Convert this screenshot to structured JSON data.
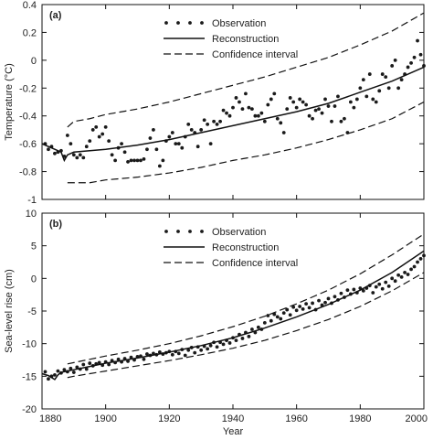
{
  "chart_data": [
    {
      "type": "line",
      "panel_label": "(a)",
      "ylabel": "Temperature (°C)",
      "xlabel": "",
      "xlim": [
        1880,
        2000
      ],
      "ylim": [
        -1,
        0.4
      ],
      "xticks": [
        1880,
        1900,
        1920,
        1940,
        1960,
        1980,
        2000
      ],
      "yticks": [
        -1,
        -0.8,
        -0.6,
        -0.4,
        -0.2,
        0,
        0.2,
        0.4
      ],
      "ytick_labels": [
        "-1",
        "-0.8",
        "-0.6",
        "-0.4",
        "-0.2",
        "0",
        "0.2",
        "0.4"
      ],
      "legend": {
        "position": "top-center",
        "entries": [
          {
            "label": "Observation",
            "style": "dots"
          },
          {
            "label": "Reconstruction",
            "style": "solid"
          },
          {
            "label": "Confidence interval",
            "style": "dashed"
          }
        ]
      },
      "series": [
        {
          "name": "Observation",
          "kind": "scatter",
          "x": [
            1881,
            1882,
            1883,
            1884,
            1885,
            1886,
            1887,
            1888,
            1889,
            1890,
            1891,
            1892,
            1893,
            1894,
            1895,
            1896,
            1897,
            1898,
            1899,
            1900,
            1901,
            1902,
            1903,
            1904,
            1905,
            1906,
            1907,
            1908,
            1909,
            1910,
            1911,
            1912,
            1913,
            1914,
            1915,
            1916,
            1917,
            1918,
            1919,
            1920,
            1921,
            1922,
            1923,
            1924,
            1925,
            1926,
            1927,
            1928,
            1929,
            1930,
            1931,
            1932,
            1933,
            1934,
            1935,
            1936,
            1937,
            1938,
            1939,
            1940,
            1941,
            1942,
            1943,
            1944,
            1945,
            1946,
            1947,
            1948,
            1949,
            1950,
            1951,
            1952,
            1953,
            1954,
            1955,
            1956,
            1957,
            1958,
            1959,
            1960,
            1961,
            1962,
            1963,
            1964,
            1965,
            1966,
            1967,
            1968,
            1969,
            1970,
            1971,
            1972,
            1973,
            1974,
            1975,
            1976,
            1977,
            1978,
            1979,
            1980,
            1981,
            1982,
            1983,
            1984,
            1985,
            1986,
            1987,
            1988,
            1989,
            1990,
            1991,
            1992,
            1993,
            1994,
            1995,
            1996,
            1997,
            1998,
            1999,
            2000
          ],
          "y": [
            -0.6,
            -0.64,
            -0.62,
            -0.67,
            -0.66,
            -0.65,
            -0.69,
            -0.54,
            -0.6,
            -0.68,
            -0.7,
            -0.68,
            -0.7,
            -0.62,
            -0.58,
            -0.5,
            -0.48,
            -0.55,
            -0.53,
            -0.48,
            -0.58,
            -0.68,
            -0.72,
            -0.63,
            -0.6,
            -0.66,
            -0.73,
            -0.72,
            -0.72,
            -0.72,
            -0.72,
            -0.71,
            -0.64,
            -0.56,
            -0.5,
            -0.64,
            -0.76,
            -0.72,
            -0.58,
            -0.55,
            -0.52,
            -0.6,
            -0.6,
            -0.63,
            -0.55,
            -0.46,
            -0.5,
            -0.52,
            -0.62,
            -0.5,
            -0.43,
            -0.46,
            -0.6,
            -0.44,
            -0.46,
            -0.44,
            -0.36,
            -0.38,
            -0.4,
            -0.34,
            -0.27,
            -0.3,
            -0.35,
            -0.24,
            -0.34,
            -0.35,
            -0.4,
            -0.4,
            -0.38,
            -0.44,
            -0.32,
            -0.28,
            -0.24,
            -0.42,
            -0.45,
            -0.52,
            -0.35,
            -0.27,
            -0.3,
            -0.34,
            -0.28,
            -0.3,
            -0.32,
            -0.4,
            -0.42,
            -0.36,
            -0.35,
            -0.38,
            -0.28,
            -0.33,
            -0.44,
            -0.33,
            -0.26,
            -0.44,
            -0.42,
            -0.52,
            -0.3,
            -0.34,
            -0.28,
            -0.2,
            -0.14,
            -0.26,
            -0.1,
            -0.28,
            -0.3,
            -0.22,
            -0.1,
            -0.12,
            -0.2,
            -0.04,
            0.0,
            -0.2,
            -0.14,
            -0.1,
            -0.05,
            -0.02,
            0.02,
            0.14,
            0.04,
            -0.04
          ]
        },
        {
          "name": "Reconstruction",
          "kind": "solid",
          "x": [
            1880,
            1882,
            1884,
            1886,
            1887,
            1888,
            1890,
            1895,
            1900,
            1910,
            1920,
            1930,
            1940,
            1950,
            1960,
            1970,
            1980,
            1990,
            2000
          ],
          "y": [
            -0.6,
            -0.62,
            -0.64,
            -0.66,
            -0.72,
            -0.68,
            -0.66,
            -0.65,
            -0.64,
            -0.61,
            -0.57,
            -0.52,
            -0.47,
            -0.42,
            -0.37,
            -0.31,
            -0.23,
            -0.15,
            -0.05
          ]
        },
        {
          "name": "Confidence interval (upper)",
          "kind": "dashed",
          "x": [
            1888,
            1890,
            1895,
            1900,
            1910,
            1920,
            1930,
            1940,
            1950,
            1960,
            1970,
            1980,
            1990,
            2000
          ],
          "y": [
            -0.48,
            -0.44,
            -0.42,
            -0.39,
            -0.35,
            -0.3,
            -0.24,
            -0.18,
            -0.12,
            -0.05,
            0.02,
            0.11,
            0.21,
            0.34
          ]
        },
        {
          "name": "Confidence interval (lower)",
          "kind": "dashed",
          "x": [
            1888,
            1890,
            1895,
            1900,
            1910,
            1920,
            1930,
            1940,
            1950,
            1960,
            1970,
            1980,
            1990,
            2000
          ],
          "y": [
            -0.88,
            -0.88,
            -0.88,
            -0.86,
            -0.84,
            -0.81,
            -0.77,
            -0.72,
            -0.68,
            -0.63,
            -0.57,
            -0.5,
            -0.42,
            -0.3
          ]
        }
      ]
    },
    {
      "type": "line",
      "panel_label": "(b)",
      "ylabel": "Sea-level rise (cm)",
      "xlabel": "Year",
      "xlim": [
        1880,
        2000
      ],
      "ylim": [
        -20,
        10
      ],
      "xticks": [
        1880,
        1900,
        1920,
        1940,
        1960,
        1980,
        2000
      ],
      "yticks": [
        -20,
        -15,
        -10,
        -5,
        0,
        5,
        10
      ],
      "ytick_labels": [
        "-20",
        "-15",
        "-10",
        "-5",
        "0",
        "5",
        "10"
      ],
      "legend": {
        "position": "top-center",
        "entries": [
          {
            "label": "Observation",
            "style": "dots"
          },
          {
            "label": "Reconstruction",
            "style": "solid"
          },
          {
            "label": "Confidence interval",
            "style": "dashed"
          }
        ]
      },
      "series": [
        {
          "name": "Observation",
          "kind": "scatter",
          "x": [
            1881,
            1882,
            1883,
            1884,
            1885,
            1886,
            1887,
            1888,
            1889,
            1890,
            1891,
            1892,
            1893,
            1894,
            1895,
            1896,
            1897,
            1898,
            1899,
            1900,
            1901,
            1902,
            1903,
            1904,
            1905,
            1906,
            1907,
            1908,
            1909,
            1910,
            1911,
            1912,
            1913,
            1914,
            1915,
            1916,
            1917,
            1918,
            1919,
            1920,
            1921,
            1922,
            1923,
            1924,
            1925,
            1926,
            1927,
            1928,
            1929,
            1930,
            1931,
            1932,
            1933,
            1934,
            1935,
            1936,
            1937,
            1938,
            1939,
            1940,
            1941,
            1942,
            1943,
            1944,
            1945,
            1946,
            1947,
            1948,
            1949,
            1950,
            1951,
            1952,
            1953,
            1954,
            1955,
            1956,
            1957,
            1958,
            1959,
            1960,
            1961,
            1962,
            1963,
            1964,
            1965,
            1966,
            1967,
            1968,
            1969,
            1970,
            1971,
            1972,
            1973,
            1974,
            1975,
            1976,
            1977,
            1978,
            1979,
            1980,
            1981,
            1982,
            1983,
            1984,
            1985,
            1986,
            1987,
            1988,
            1989,
            1990,
            1991,
            1992,
            1993,
            1994,
            1995,
            1996,
            1997,
            1998,
            1999,
            2000
          ],
          "y": [
            -14.3,
            -15.4,
            -15.0,
            -14.8,
            -14.2,
            -14.5,
            -14.0,
            -14.3,
            -13.8,
            -14.4,
            -13.6,
            -13.9,
            -13.2,
            -13.9,
            -13.0,
            -13.4,
            -13.1,
            -12.9,
            -13.3,
            -12.8,
            -13.2,
            -12.6,
            -12.9,
            -12.4,
            -12.8,
            -12.3,
            -12.7,
            -12.1,
            -12.5,
            -12.0,
            -11.9,
            -12.4,
            -11.6,
            -11.8,
            -11.5,
            -11.7,
            -11.3,
            -11.6,
            -11.4,
            -11.2,
            -11.7,
            -11.2,
            -11.5,
            -10.9,
            -11.8,
            -11.0,
            -10.6,
            -11.4,
            -10.5,
            -11.0,
            -10.4,
            -10.8,
            -10.3,
            -9.8,
            -10.5,
            -9.8,
            -10.1,
            -9.5,
            -9.9,
            -9.1,
            -9.5,
            -8.6,
            -9.2,
            -8.3,
            -8.9,
            -7.8,
            -8.3,
            -7.5,
            -7.8,
            -6.8,
            -5.7,
            -6.5,
            -5.5,
            -5.9,
            -6.2,
            -5.3,
            -4.8,
            -5.6,
            -4.4,
            -4.9,
            -4.3,
            -4.7,
            -3.9,
            -4.5,
            -3.8,
            -4.8,
            -3.4,
            -4.1,
            -3.7,
            -3.1,
            -3.8,
            -2.8,
            -3.3,
            -2.3,
            -2.9,
            -1.8,
            -2.4,
            -1.7,
            -2.2,
            -1.5,
            -1.9,
            -1.5,
            -1.1,
            -2.2,
            -1.3,
            -0.9,
            -1.6,
            -0.6,
            -1.2,
            0.0,
            -0.4,
            0.5,
            0.2,
            0.9,
            0.6,
            1.4,
            1.8,
            2.5,
            3.0,
            3.5
          ]
        },
        {
          "name": "Reconstruction",
          "kind": "solid",
          "x": [
            1880,
            1882,
            1884,
            1885,
            1886,
            1888,
            1890,
            1895,
            1900,
            1910,
            1920,
            1930,
            1940,
            1950,
            1960,
            1970,
            1980,
            1990,
            2000
          ],
          "y": [
            -14.6,
            -14.9,
            -15.5,
            -14.8,
            -14.4,
            -14.2,
            -14.0,
            -13.5,
            -13.0,
            -12.2,
            -11.3,
            -10.3,
            -9.1,
            -7.6,
            -5.9,
            -4.0,
            -1.8,
            0.9,
            4.2
          ]
        },
        {
          "name": "Confidence interval (upper)",
          "kind": "dashed",
          "x": [
            1888,
            1890,
            1895,
            1900,
            1910,
            1920,
            1930,
            1940,
            1950,
            1960,
            1970,
            1980,
            1990,
            2000
          ],
          "y": [
            -13.1,
            -12.9,
            -12.4,
            -11.9,
            -11.0,
            -10.0,
            -8.8,
            -7.4,
            -5.8,
            -3.9,
            -1.8,
            0.7,
            3.6,
            6.8
          ]
        },
        {
          "name": "Confidence interval (lower)",
          "kind": "dashed",
          "x": [
            1888,
            1890,
            1895,
            1900,
            1910,
            1920,
            1930,
            1940,
            1950,
            1960,
            1970,
            1980,
            1990,
            2000
          ],
          "y": [
            -15.2,
            -15.0,
            -14.6,
            -14.2,
            -13.4,
            -12.6,
            -11.7,
            -10.7,
            -9.5,
            -8.0,
            -6.3,
            -4.3,
            -1.9,
            0.9
          ]
        }
      ]
    }
  ]
}
